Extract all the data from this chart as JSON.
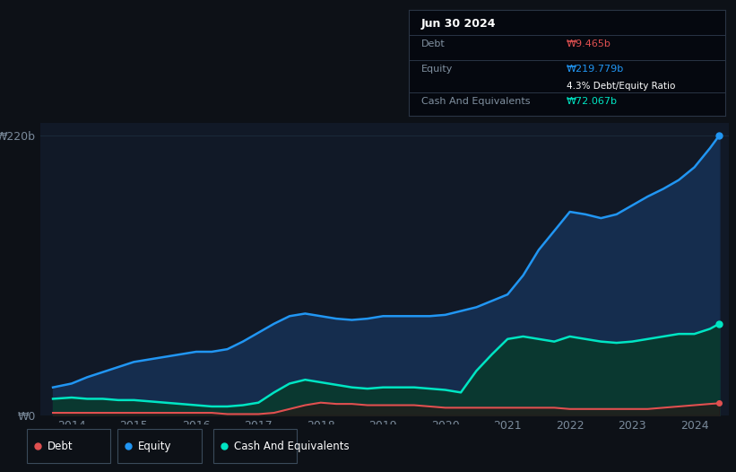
{
  "bg_color": "#0d1117",
  "plot_bg_color": "#111927",
  "ylabel_220": "₩220b",
  "ylabel_0": "₩0",
  "x_labels": [
    "2014",
    "2015",
    "2016",
    "2017",
    "2018",
    "2019",
    "2020",
    "2021",
    "2022",
    "2023",
    "2024"
  ],
  "years": [
    2013.7,
    2014.0,
    2014.25,
    2014.5,
    2014.75,
    2015.0,
    2015.25,
    2015.5,
    2015.75,
    2016.0,
    2016.25,
    2016.5,
    2016.75,
    2017.0,
    2017.25,
    2017.5,
    2017.75,
    2018.0,
    2018.25,
    2018.5,
    2018.75,
    2019.0,
    2019.25,
    2019.5,
    2019.75,
    2020.0,
    2020.25,
    2020.5,
    2020.75,
    2021.0,
    2021.25,
    2021.5,
    2021.75,
    2022.0,
    2022.25,
    2022.5,
    2022.75,
    2023.0,
    2023.25,
    2023.5,
    2023.75,
    2024.0,
    2024.25,
    2024.4
  ],
  "equity": [
    22,
    25,
    30,
    34,
    38,
    42,
    44,
    46,
    48,
    50,
    50,
    52,
    58,
    65,
    72,
    78,
    80,
    78,
    76,
    75,
    76,
    78,
    78,
    78,
    78,
    79,
    82,
    85,
    90,
    95,
    110,
    130,
    145,
    160,
    158,
    155,
    158,
    165,
    172,
    178,
    185,
    195,
    210,
    220
  ],
  "cash": [
    13,
    14,
    13,
    13,
    12,
    12,
    11,
    10,
    9,
    8,
    7,
    7,
    8,
    10,
    18,
    25,
    28,
    26,
    24,
    22,
    21,
    22,
    22,
    22,
    21,
    20,
    18,
    35,
    48,
    60,
    62,
    60,
    58,
    62,
    60,
    58,
    57,
    58,
    60,
    62,
    64,
    64,
    68,
    72
  ],
  "debt": [
    2,
    2,
    2,
    2,
    2,
    2,
    2,
    2,
    2,
    2,
    2,
    1,
    1,
    1,
    2,
    5,
    8,
    10,
    9,
    9,
    8,
    8,
    8,
    8,
    7,
    6,
    6,
    6,
    6,
    6,
    6,
    6,
    6,
    5,
    5,
    5,
    5,
    5,
    5,
    6,
    7,
    8,
    9,
    9.5
  ],
  "equity_color": "#2196f3",
  "equity_fill": "#152d4e",
  "cash_color": "#00e5c3",
  "cash_fill": "#0a3830",
  "debt_color": "#e05050",
  "debt_fill": "#2a1515",
  "grid_color": "#1a2a3a",
  "tick_color": "#7a8a9a",
  "tooltip_bg": "#05080f",
  "tooltip_border": "#2a3545",
  "tooltip_title": "Jun 30 2024",
  "tooltip_debt_label": "Debt",
  "tooltip_debt_value": "₩9.465b",
  "tooltip_equity_label": "Equity",
  "tooltip_equity_value": "₩219.779b",
  "tooltip_ratio": "4.3% Debt/Equity Ratio",
  "tooltip_cash_label": "Cash And Equivalents",
  "tooltip_cash_value": "₩72.067b",
  "legend_debt": "Debt",
  "legend_equity": "Equity",
  "legend_cash": "Cash And Equivalents",
  "ylim_max": 230,
  "xlim_min": 2013.5,
  "xlim_max": 2024.55
}
